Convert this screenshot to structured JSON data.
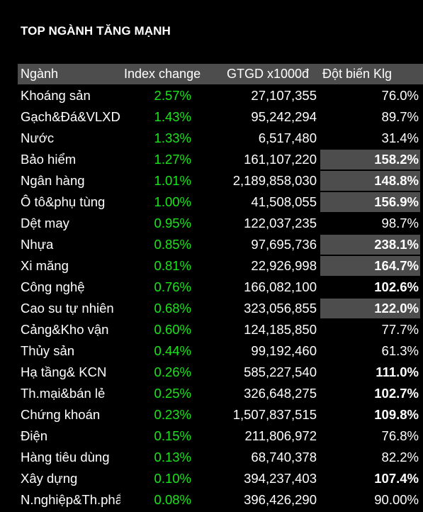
{
  "title": "TOP NGÀNH TĂNG MẠNH",
  "columns": [
    "Ngành",
    "Index change",
    "GTGD x1000đ",
    "Đột biến Klg"
  ],
  "colors": {
    "background": "#000000",
    "header_bg": "#4d4d4d",
    "positive": "#19e619",
    "highlight_bg": "#4d4d4d"
  },
  "rows": [
    {
      "sector": "Khoáng sản",
      "index_change": "2.57%",
      "value": "27,107,355",
      "spike": "76.0%",
      "bold": false,
      "highlight": false
    },
    {
      "sector": "Gạch&Đá&VLXD",
      "index_change": "1.43%",
      "value": "95,242,294",
      "spike": "89.7%",
      "bold": false,
      "highlight": false
    },
    {
      "sector": "Nước",
      "index_change": "1.33%",
      "value": "6,517,480",
      "spike": "31.4%",
      "bold": false,
      "highlight": false
    },
    {
      "sector": "Bảo hiểm",
      "index_change": "1.27%",
      "value": "161,107,220",
      "spike": "158.2%",
      "bold": true,
      "highlight": true
    },
    {
      "sector": "Ngân hàng",
      "index_change": "1.01%",
      "value": "2,189,858,030",
      "spike": "148.8%",
      "bold": true,
      "highlight": true
    },
    {
      "sector": "Ô tô&phụ tùng",
      "index_change": "1.00%",
      "value": "41,508,055",
      "spike": "156.9%",
      "bold": true,
      "highlight": true
    },
    {
      "sector": "Dệt may",
      "index_change": "0.95%",
      "value": "122,037,235",
      "spike": "98.7%",
      "bold": false,
      "highlight": false
    },
    {
      "sector": "Nhựa",
      "index_change": "0.85%",
      "value": "97,695,736",
      "spike": "238.1%",
      "bold": true,
      "highlight": true
    },
    {
      "sector": "Xi măng",
      "index_change": "0.81%",
      "value": "22,926,998",
      "spike": "164.7%",
      "bold": true,
      "highlight": true
    },
    {
      "sector": "Công nghệ",
      "index_change": "0.76%",
      "value": "166,082,100",
      "spike": "102.6%",
      "bold": true,
      "highlight": false
    },
    {
      "sector": "Cao su tự nhiên",
      "index_change": "0.68%",
      "value": "323,056,855",
      "spike": "122.0%",
      "bold": true,
      "highlight": true
    },
    {
      "sector": "Cảng&Kho vận",
      "index_change": "0.60%",
      "value": "124,185,850",
      "spike": "77.7%",
      "bold": false,
      "highlight": false
    },
    {
      "sector": "Thủy sản",
      "index_change": "0.44%",
      "value": "99,192,460",
      "spike": "61.3%",
      "bold": false,
      "highlight": false
    },
    {
      "sector": "Hạ tầng& KCN",
      "index_change": "0.26%",
      "value": "585,227,540",
      "spike": "111.0%",
      "bold": true,
      "highlight": false
    },
    {
      "sector": "Th.mại&bán lẻ",
      "index_change": "0.25%",
      "value": "326,648,275",
      "spike": "102.7%",
      "bold": true,
      "highlight": false
    },
    {
      "sector": "Chứng khoán",
      "index_change": "0.23%",
      "value": "1,507,837,515",
      "spike": "109.8%",
      "bold": true,
      "highlight": false
    },
    {
      "sector": "Điện",
      "index_change": "0.15%",
      "value": "211,806,972",
      "spike": "76.8%",
      "bold": false,
      "highlight": false
    },
    {
      "sector": "Hàng tiêu dùng",
      "index_change": "0.13%",
      "value": "68,740,378",
      "spike": "82.2%",
      "bold": false,
      "highlight": false
    },
    {
      "sector": "Xây dựng",
      "index_change": "0.10%",
      "value": "394,237,403",
      "spike": "107.4%",
      "bold": true,
      "highlight": false
    },
    {
      "sector": "N.nghiệp&Th.phẩm",
      "index_change": "0.08%",
      "value": "396,426,290",
      "spike": "90.00%",
      "bold": false,
      "highlight": false
    }
  ]
}
